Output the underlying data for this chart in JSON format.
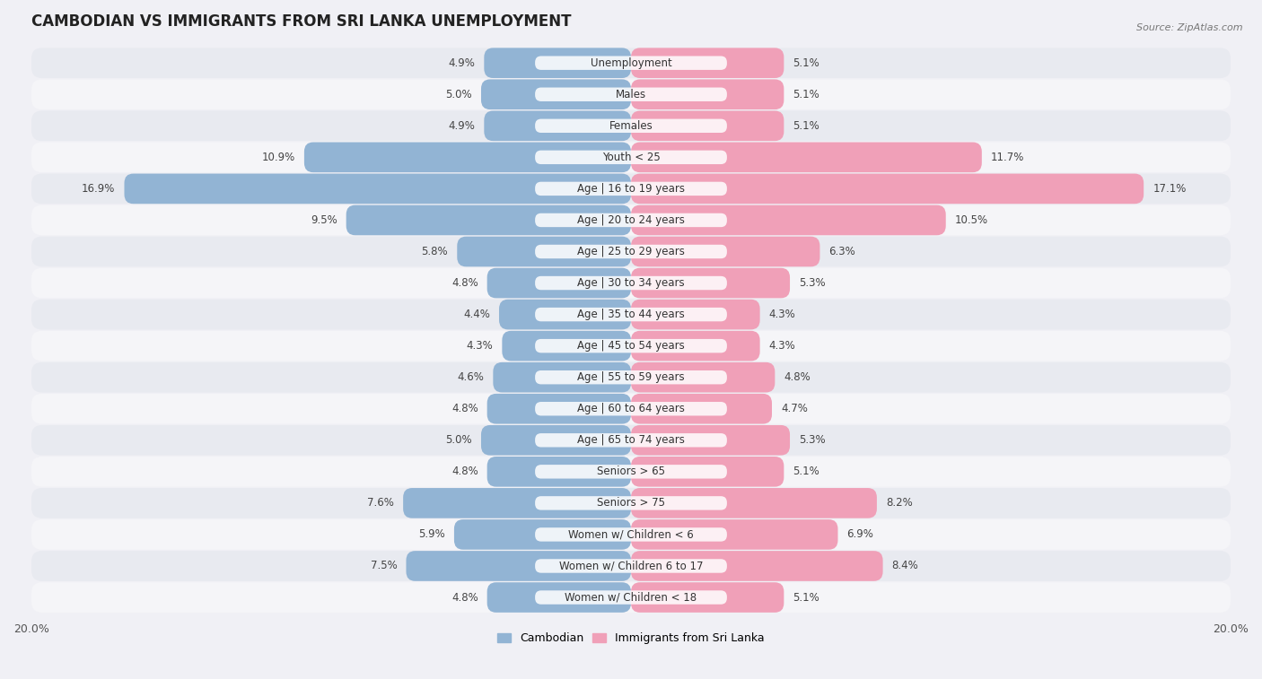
{
  "title": "CAMBODIAN VS IMMIGRANTS FROM SRI LANKA UNEMPLOYMENT",
  "source": "Source: ZipAtlas.com",
  "categories": [
    "Unemployment",
    "Males",
    "Females",
    "Youth < 25",
    "Age | 16 to 19 years",
    "Age | 20 to 24 years",
    "Age | 25 to 29 years",
    "Age | 30 to 34 years",
    "Age | 35 to 44 years",
    "Age | 45 to 54 years",
    "Age | 55 to 59 years",
    "Age | 60 to 64 years",
    "Age | 65 to 74 years",
    "Seniors > 65",
    "Seniors > 75",
    "Women w/ Children < 6",
    "Women w/ Children 6 to 17",
    "Women w/ Children < 18"
  ],
  "cambodian_values": [
    4.9,
    5.0,
    4.9,
    10.9,
    16.9,
    9.5,
    5.8,
    4.8,
    4.4,
    4.3,
    4.6,
    4.8,
    5.0,
    4.8,
    7.6,
    5.9,
    7.5,
    4.8
  ],
  "srilanka_values": [
    5.1,
    5.1,
    5.1,
    11.7,
    17.1,
    10.5,
    6.3,
    5.3,
    4.3,
    4.3,
    4.8,
    4.7,
    5.3,
    5.1,
    8.2,
    6.9,
    8.4,
    5.1
  ],
  "cambodian_color": "#92b4d4",
  "srilanka_color": "#f0a0b8",
  "row_even_color": "#e8eaf0",
  "row_odd_color": "#f5f5f8",
  "background_color": "#f0f0f5",
  "xlim": 20.0,
  "label_fontsize": 8.5,
  "title_fontsize": 12,
  "value_fontsize": 8.5,
  "legend_labels": [
    "Cambodian",
    "Immigrants from Sri Lanka"
  ]
}
